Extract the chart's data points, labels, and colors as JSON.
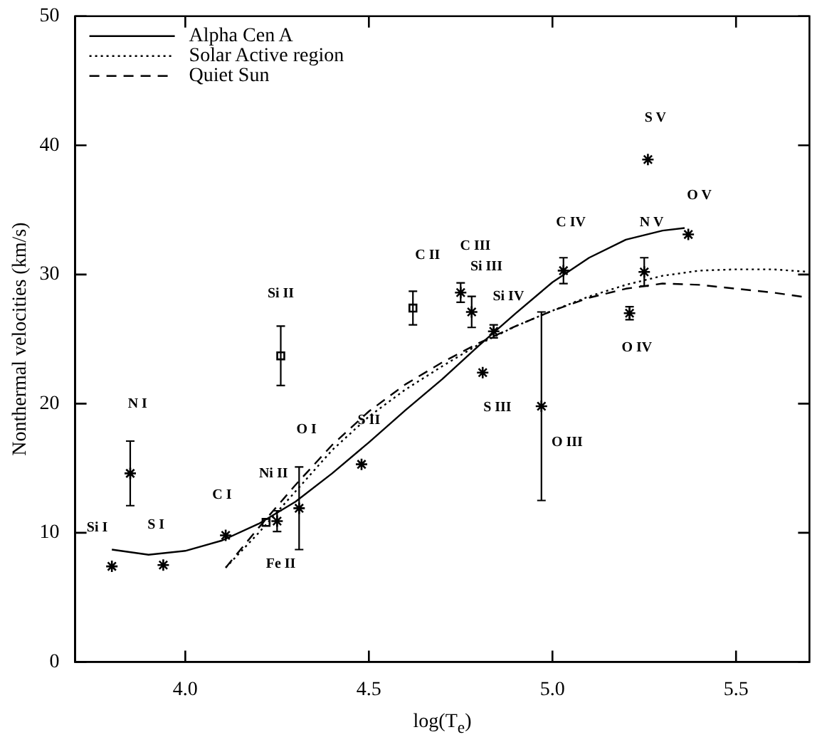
{
  "chart_data": {
    "type": "scatter",
    "xlabel": "log(T$_{e}$)",
    "ylabel": "Nonthermal velocities (km/s)",
    "xlim": [
      3.7,
      5.7
    ],
    "ylim": [
      0,
      50
    ],
    "xticks": [
      {
        "value": 4.0,
        "label": "4.0"
      },
      {
        "value": 4.5,
        "label": "4.5"
      },
      {
        "value": 5.0,
        "label": "5.0"
      },
      {
        "value": 5.5,
        "label": "5.5"
      }
    ],
    "yticks": [
      0,
      10,
      20,
      30,
      40,
      50
    ],
    "grid": false,
    "legend": "top left",
    "series": [
      {
        "name": "Alpha Cen A",
        "type": "line",
        "color": "#000000",
        "line_style": "solid",
        "marker": "none",
        "x": [
          3.8,
          3.9,
          4.0,
          4.1,
          4.2,
          4.3,
          4.4,
          4.5,
          4.6,
          4.7,
          4.8,
          4.9,
          5.0,
          5.1,
          5.2,
          5.3,
          5.36
        ],
        "values": [
          8.7,
          8.3,
          8.6,
          9.4,
          10.7,
          12.4,
          14.6,
          17.0,
          19.5,
          21.9,
          24.5,
          27.0,
          29.4,
          31.3,
          32.7,
          33.4,
          33.6
        ]
      },
      {
        "name": "Solar Active region",
        "type": "line",
        "color": "#000000",
        "line_style": "dotted",
        "marker": "none",
        "x": [
          4.11,
          4.2,
          4.3,
          4.4,
          4.5,
          4.6,
          4.7,
          4.8,
          4.9,
          5.0,
          5.1,
          5.2,
          5.3,
          5.4,
          5.5,
          5.6,
          5.7
        ],
        "values": [
          7.3,
          10.0,
          13.2,
          16.4,
          19.0,
          21.1,
          22.9,
          24.6,
          26.0,
          27.2,
          28.3,
          29.2,
          29.9,
          30.3,
          30.4,
          30.4,
          30.2
        ]
      },
      {
        "name": "Quiet Sun",
        "type": "line",
        "color": "#000000",
        "line_style": "dashed",
        "marker": "none",
        "x": [
          4.11,
          4.2,
          4.3,
          4.4,
          4.5,
          4.6,
          4.7,
          4.8,
          4.9,
          5.0,
          5.1,
          5.2,
          5.3,
          5.4,
          5.5,
          5.6,
          5.7
        ],
        "values": [
          7.3,
          10.4,
          13.7,
          16.8,
          19.4,
          21.5,
          23.2,
          24.7,
          26.0,
          27.2,
          28.2,
          28.9,
          29.3,
          29.2,
          28.9,
          28.6,
          28.2
        ]
      },
      {
        "type": "scatter",
        "color": "#000000",
        "marker": "cross",
        "x": [
          3.8,
          3.94,
          3.85,
          4.11,
          4.25,
          4.31,
          4.48,
          4.75,
          4.78,
          4.84,
          4.81,
          4.97,
          5.03,
          5.25,
          5.21,
          5.37,
          5.26
        ],
        "values": [
          7.4,
          7.5,
          14.6,
          9.8,
          10.9,
          11.9,
          15.3,
          28.6,
          27.1,
          25.6,
          22.4,
          19.8,
          30.3,
          30.2,
          27.0,
          33.1,
          38.9
        ],
        "errors": [
          null,
          null,
          2.5,
          null,
          0.8,
          3.2,
          null,
          0.75,
          1.2,
          0.5,
          null,
          7.3,
          1.0,
          1.1,
          0.5,
          null,
          null
        ]
      },
      {
        "type": "scatter",
        "color": "#000000",
        "marker": "square",
        "x": [
          4.22,
          4.26,
          4.62
        ],
        "values": [
          10.8,
          23.7,
          27.4
        ],
        "errors": [
          null,
          2.3,
          1.3
        ]
      }
    ],
    "annotations": [
      "N I",
      "Si I",
      "S I",
      "C I",
      "Ni II",
      "O I",
      "Fe II",
      "S II",
      "Si II",
      "C II",
      "C III",
      "Si III",
      "Si IV",
      "S III",
      "O III",
      "C IV",
      "N V",
      "O IV",
      "O V",
      "S V"
    ]
  }
}
